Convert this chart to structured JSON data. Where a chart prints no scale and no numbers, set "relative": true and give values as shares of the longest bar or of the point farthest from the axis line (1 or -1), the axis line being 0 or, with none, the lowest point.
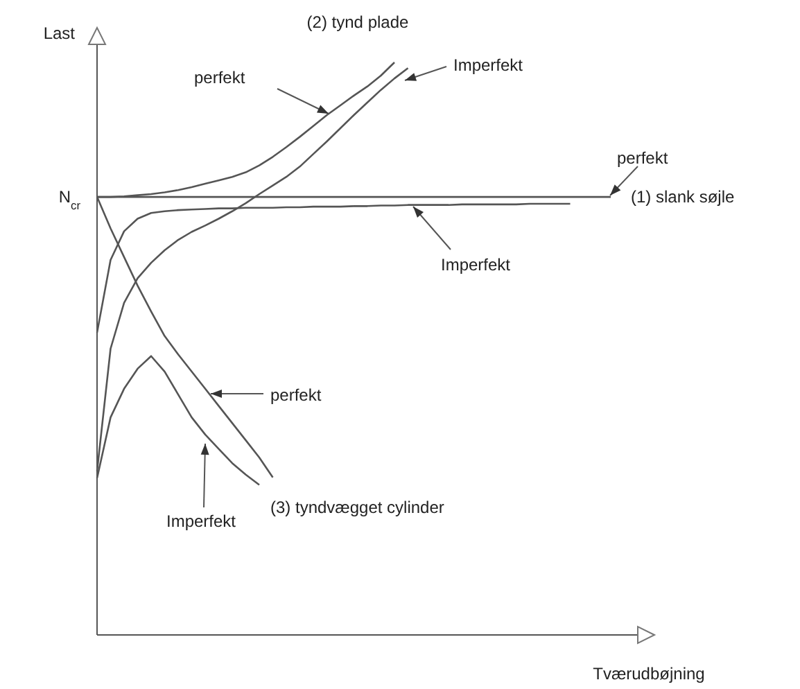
{
  "chart_data": {
    "type": "line",
    "relative": true,
    "xlabel": "Tværudbøjning",
    "ylabel": "Last",
    "line_style": "solid",
    "categories": [
      null,
      null,
      null,
      null,
      null,
      null,
      null,
      null,
      null,
      null,
      null,
      null,
      null,
      null,
      null,
      null,
      null,
      null,
      null,
      null,
      null,
      null,
      null,
      null,
      null,
      null,
      null,
      null,
      null,
      null,
      null,
      null,
      null,
      null,
      null,
      null,
      null,
      null,
      null
    ],
    "series": [
      {
        "color": "#555555",
        "values": [
          0.765,
          0.765,
          0.765,
          0.765,
          0.765,
          0.765,
          0.765,
          0.765,
          0.765,
          0.765,
          0.765,
          0.765,
          0.765,
          0.765,
          0.765,
          0.765,
          0.765,
          0.765,
          0.765,
          0.765,
          0.765,
          0.765,
          0.765,
          0.765,
          0.765,
          0.765,
          0.765,
          0.765,
          0.765,
          0.765,
          0.765,
          0.765,
          0.765,
          0.765,
          0.765,
          0.765,
          0.765,
          0.765,
          0.765
        ]
      },
      {
        "color": "#555555",
        "values": [
          0.528,
          0.655,
          0.705,
          0.727,
          0.737,
          0.74,
          0.742,
          0.743,
          0.744,
          0.745,
          0.745,
          0.746,
          0.746,
          0.746,
          0.747,
          0.747,
          0.748,
          0.748,
          0.748,
          0.749,
          0.749,
          0.75,
          0.75,
          0.751,
          0.751,
          0.751,
          0.751,
          0.752,
          0.752,
          0.752,
          0.752,
          0.752,
          0.753,
          0.753,
          0.753,
          0.753,
          null,
          null,
          null
        ]
      },
      {
        "color": "#555555",
        "values": [
          0.765,
          0.765,
          0.766,
          0.768,
          0.77,
          0.773,
          0.777,
          0.782,
          0.788,
          0.794,
          0.8,
          0.808,
          0.82,
          0.835,
          0.852,
          0.87,
          0.889,
          0.908,
          0.925,
          0.942,
          0.958,
          0.977,
          1.0,
          null,
          null,
          null,
          null,
          null,
          null,
          null,
          null,
          null,
          null,
          null,
          null,
          null,
          null,
          null,
          null
        ]
      },
      {
        "color": "#555555",
        "values": [
          0.286,
          0.5,
          0.58,
          0.623,
          0.65,
          0.672,
          0.69,
          0.704,
          0.715,
          0.727,
          0.74,
          0.754,
          0.77,
          0.785,
          0.8,
          0.818,
          0.84,
          0.862,
          0.885,
          0.908,
          0.93,
          0.952,
          0.972,
          0.99,
          null,
          null,
          null,
          null,
          null,
          null,
          null,
          null,
          null,
          null,
          null,
          null,
          null,
          null,
          null
        ]
      },
      {
        "color": "#555555",
        "values": [
          0.765,
          0.71,
          0.66,
          0.61,
          0.565,
          0.522,
          0.49,
          0.46,
          0.43,
          0.4,
          0.37,
          0.34,
          0.31,
          0.275,
          null,
          null,
          null,
          null,
          null,
          null,
          null,
          null,
          null,
          null,
          null,
          null,
          null,
          null,
          null,
          null,
          null,
          null,
          null,
          null,
          null,
          null,
          null,
          null,
          null
        ]
      },
      {
        "color": "#555555",
        "values": [
          0.274,
          0.38,
          0.43,
          0.465,
          0.487,
          0.46,
          0.42,
          0.38,
          0.35,
          0.325,
          0.3,
          0.28,
          0.262,
          null,
          null,
          null,
          null,
          null,
          null,
          null,
          null,
          null,
          null,
          null,
          null,
          null,
          null,
          null,
          null,
          null,
          null,
          null,
          null,
          null,
          null,
          null,
          null,
          null,
          null
        ]
      }
    ],
    "annotations": [
      "perfekt",
      "Imperfekt",
      "perfekt",
      "Imperfekt",
      "perfekt",
      "Imperfekt",
      "(1) slank søjle",
      "(2) tynd plade",
      "(3) tyndvægget cylinder",
      "N$_{cr}$"
    ]
  }
}
